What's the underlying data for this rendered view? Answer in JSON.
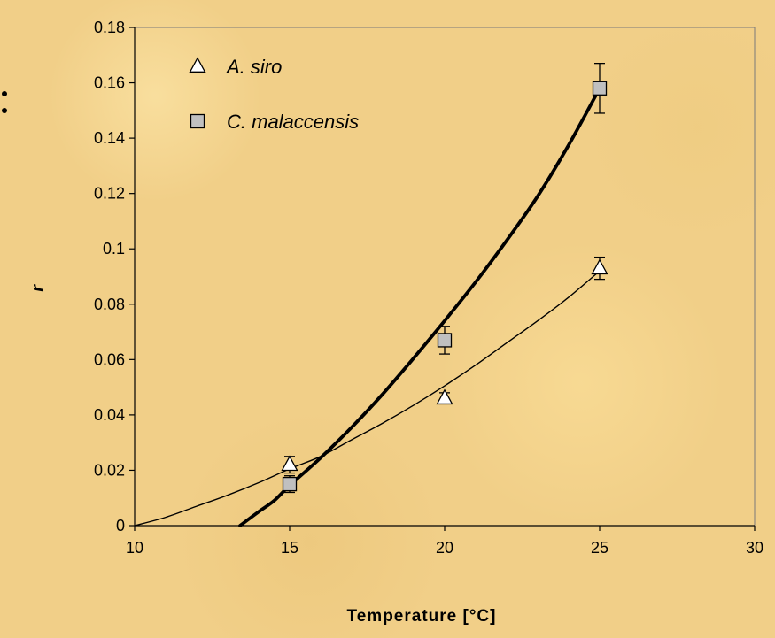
{
  "chart_data": {
    "type": "scatter",
    "title": "",
    "xlabel": "Temperature [°C]",
    "ylabel": "r",
    "xlim": [
      10,
      30
    ],
    "ylim": [
      0,
      0.18
    ],
    "x_ticks": [
      "10",
      "15",
      "20",
      "25",
      "30"
    ],
    "y_ticks": [
      "0",
      "0.02",
      "0.04",
      "0.06",
      "0.08",
      "0.1",
      "0.12",
      "0.14",
      "0.16",
      "0.18"
    ],
    "grid": false,
    "legend_position": "top-left",
    "series": [
      {
        "name": "A. siro",
        "marker": "open-triangle",
        "color": "#000000",
        "line_style": "thin",
        "points": [
          {
            "x": 15,
            "y": 0.022,
            "err": 0.003
          },
          {
            "x": 20,
            "y": 0.046,
            "err": 0.002
          },
          {
            "x": 25,
            "y": 0.093,
            "err": 0.004
          }
        ],
        "fit_curve": [
          [
            10,
            0.0
          ],
          [
            11,
            0.003
          ],
          [
            12,
            0.007
          ],
          [
            13,
            0.011
          ],
          [
            14,
            0.0155
          ],
          [
            15,
            0.0205
          ],
          [
            16,
            0.025
          ],
          [
            17,
            0.031
          ],
          [
            18,
            0.037
          ],
          [
            19,
            0.0435
          ],
          [
            20,
            0.0505
          ],
          [
            21,
            0.058
          ],
          [
            22,
            0.066
          ],
          [
            23,
            0.074
          ],
          [
            24,
            0.0825
          ],
          [
            25,
            0.092
          ]
        ]
      },
      {
        "name": "C. malaccensis",
        "marker": "filled-square",
        "color": "#000000",
        "fill": "#c0c0c0",
        "line_style": "thick",
        "points": [
          {
            "x": 15,
            "y": 0.015,
            "err": 0.003
          },
          {
            "x": 20,
            "y": 0.067,
            "err": 0.005
          },
          {
            "x": 25,
            "y": 0.158,
            "err": 0.009
          }
        ],
        "fit_curve": [
          [
            13.4,
            0.0
          ],
          [
            14,
            0.005
          ],
          [
            14.5,
            0.009
          ],
          [
            15,
            0.0145
          ],
          [
            16,
            0.0245
          ],
          [
            17,
            0.0355
          ],
          [
            18,
            0.0475
          ],
          [
            19,
            0.0605
          ],
          [
            20,
            0.074
          ],
          [
            21,
            0.088
          ],
          [
            22,
            0.103
          ],
          [
            23,
            0.119
          ],
          [
            24,
            0.1375
          ],
          [
            25,
            0.158
          ]
        ]
      }
    ]
  }
}
